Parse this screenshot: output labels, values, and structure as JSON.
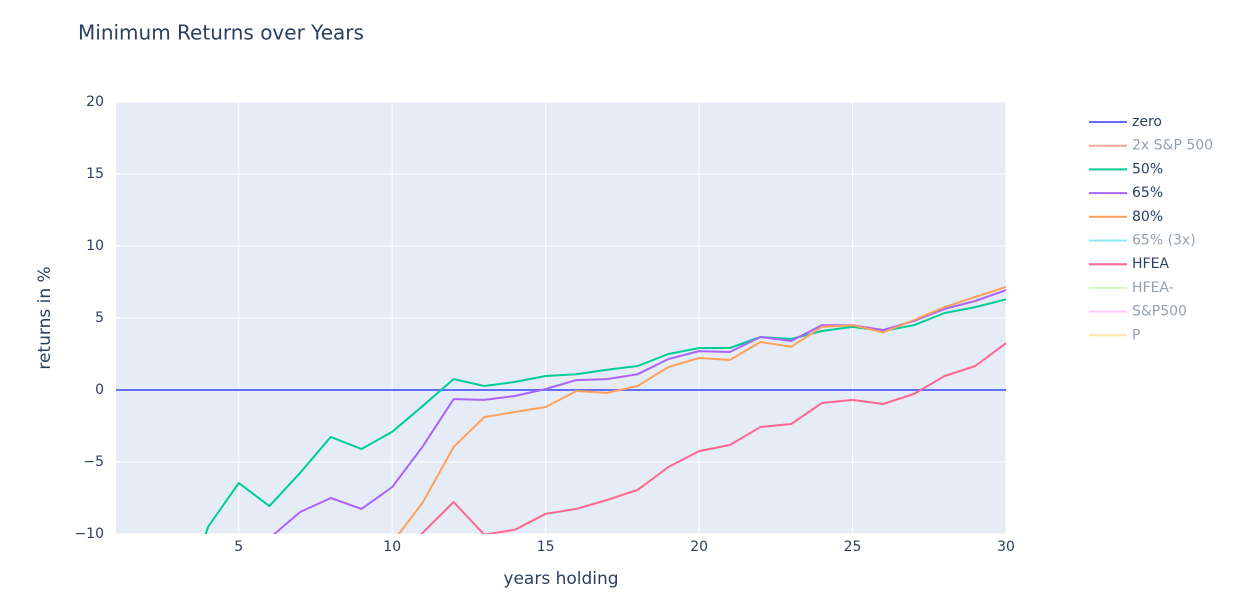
{
  "chart_data": {
    "type": "line",
    "title": "Minimum Returns over Years",
    "x_label": "years holding",
    "y_label": "returns in %",
    "x": [
      1,
      2,
      3,
      4,
      5,
      6,
      7,
      8,
      9,
      10,
      11,
      12,
      13,
      14,
      15,
      16,
      17,
      18,
      19,
      20,
      21,
      22,
      23,
      24,
      25,
      26,
      27,
      28,
      29,
      30
    ],
    "xlim": [
      1,
      30
    ],
    "xticks": [
      5,
      10,
      15,
      20,
      25,
      30
    ],
    "ylim": [
      -10,
      20
    ],
    "yticks": [
      {
        "value": -10,
        "label": "−10"
      },
      {
        "value": -5,
        "label": "−5"
      },
      0,
      5,
      10,
      15,
      20
    ],
    "grid": true,
    "series": [
      {
        "name": "zero",
        "color": "#636efa",
        "visible": true,
        "values": [
          0,
          0,
          0,
          0,
          0,
          0,
          0,
          0,
          0,
          0,
          0,
          0,
          0,
          0,
          0,
          0,
          0,
          0,
          0,
          0,
          0,
          0,
          0,
          0,
          0,
          0,
          0,
          0,
          0,
          0
        ]
      },
      {
        "name": "2x S&P 500",
        "color": "#EF553B",
        "visible": false
      },
      {
        "name": "50%",
        "color": "#00cc96",
        "visible": true,
        "values": [
          null,
          null,
          -16,
          -9.5,
          -6.46,
          -8.06,
          -5.76,
          -3.26,
          -4.1,
          -2.9,
          -1.1,
          0.76,
          0.28,
          0.56,
          0.97,
          1.1,
          1.4,
          1.67,
          2.5,
          2.92,
          2.92,
          3.68,
          3.54,
          4.1,
          4.38,
          4.1,
          4.5,
          5.35,
          5.76,
          6.3
        ]
      },
      {
        "name": "65%",
        "color": "#ab63fa",
        "visible": true,
        "values": [
          null,
          null,
          null,
          null,
          -13,
          -10.3,
          -8.47,
          -7.5,
          -8.26,
          -6.74,
          -3.9,
          -0.63,
          -0.69,
          -0.42,
          0.07,
          0.69,
          0.76,
          1.1,
          2.15,
          2.7,
          2.64,
          3.68,
          3.4,
          4.5,
          4.5,
          4.17,
          4.8,
          5.63,
          6.18,
          6.94
        ]
      },
      {
        "name": "80%",
        "color": "#FFA15A",
        "visible": true,
        "values": [
          null,
          null,
          null,
          null,
          null,
          null,
          null,
          null,
          null,
          -10.6,
          -7.8,
          -3.96,
          -1.88,
          -1.53,
          -1.18,
          -0.07,
          -0.2,
          0.28,
          1.6,
          2.22,
          2.08,
          3.33,
          3.0,
          4.38,
          4.5,
          4.0,
          4.86,
          5.76,
          6.46,
          7.15
        ]
      },
      {
        "name": "65% (3x)",
        "color": "#19d3f3",
        "visible": false
      },
      {
        "name": "HFEA",
        "color": "#FF6692",
        "visible": true,
        "values": [
          null,
          null,
          null,
          null,
          null,
          null,
          null,
          null,
          null,
          -12,
          -9.9,
          -7.78,
          -10.05,
          -9.7,
          -8.6,
          -8.26,
          -7.64,
          -6.94,
          -5.35,
          -4.24,
          -3.82,
          -2.57,
          -2.36,
          -0.9,
          -0.69,
          -0.97,
          -0.28,
          0.97,
          1.67,
          3.26
        ]
      },
      {
        "name": "HFEA-",
        "color": "#B6E880",
        "visible": false
      },
      {
        "name": "S&P500",
        "color": "#FF97FF",
        "visible": false
      },
      {
        "name": "P",
        "color": "#FECB52",
        "visible": false
      }
    ]
  }
}
